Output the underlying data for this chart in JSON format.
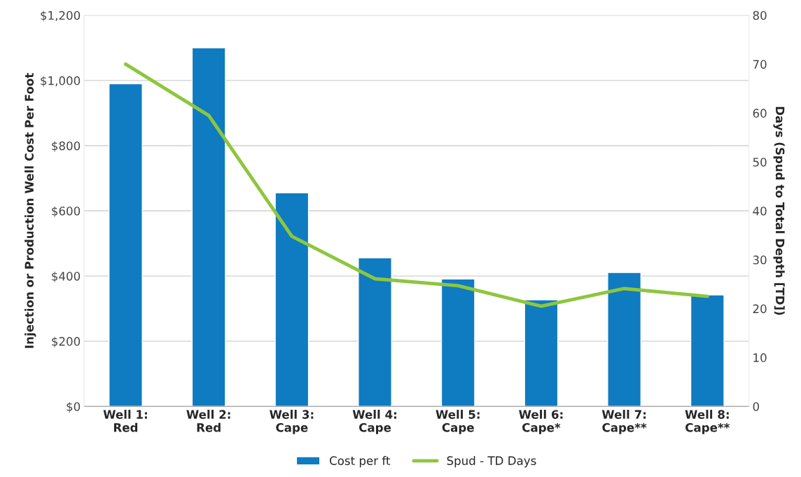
{
  "chart_data": {
    "type": "bar",
    "categories": [
      "Well 1:\nRed",
      "Well 2:\nRed",
      "Well 3:\nCape",
      "Well 4:\nCape",
      "Well 5:\nCape",
      "Well 6:\nCape*",
      "Well 7:\nCape**",
      "Well 8:\nCape**"
    ],
    "series": [
      {
        "name": "Cost per ft",
        "color": "#0f7bc0",
        "values": [
          990,
          1100,
          655,
          456,
          391,
          327,
          411,
          342
        ]
      },
      {
        "name": "Spud - TD Days",
        "type": "line",
        "axis": "y2",
        "color": "#8dc63f",
        "values": [
          70,
          59.5,
          34.8,
          26.1,
          24.7,
          20.5,
          24.1,
          22.5
        ]
      }
    ],
    "ylabel": "Injection or Production Well Cost Per Foot",
    "y2label": "Days (Spud to Total Depth [TD])",
    "ylim": [
      0,
      1200
    ],
    "yticks": [
      {
        "value": 0,
        "label": "$0"
      },
      {
        "value": 200,
        "label": "$200"
      },
      {
        "value": 400,
        "label": "$400"
      },
      {
        "value": 600,
        "label": "$600"
      },
      {
        "value": 800,
        "label": "$800"
      },
      {
        "value": 1000,
        "label": "$1,000"
      },
      {
        "value": 1200,
        "label": "$1,200"
      }
    ],
    "y2lim": [
      0,
      80
    ],
    "y2ticks": [
      0,
      10,
      20,
      30,
      40,
      50,
      60,
      70,
      80
    ],
    "grid": "y",
    "legend": "bottom",
    "marker": "none",
    "line_style": "solid"
  }
}
